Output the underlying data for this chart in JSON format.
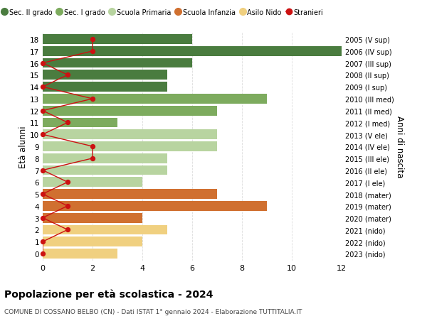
{
  "ages": [
    18,
    17,
    16,
    15,
    14,
    13,
    12,
    11,
    10,
    9,
    8,
    7,
    6,
    5,
    4,
    3,
    2,
    1,
    0
  ],
  "right_labels": [
    "2005 (V sup)",
    "2006 (IV sup)",
    "2007 (III sup)",
    "2008 (II sup)",
    "2009 (I sup)",
    "2010 (III med)",
    "2011 (II med)",
    "2012 (I med)",
    "2013 (V ele)",
    "2014 (IV ele)",
    "2015 (III ele)",
    "2016 (II ele)",
    "2017 (I ele)",
    "2018 (mater)",
    "2019 (mater)",
    "2020 (mater)",
    "2021 (nido)",
    "2022 (nido)",
    "2023 (nido)"
  ],
  "bar_values": [
    6,
    12,
    6,
    5,
    5,
    9,
    7,
    3,
    7,
    7,
    5,
    5,
    4,
    7,
    9,
    4,
    5,
    4,
    3
  ],
  "bar_colors": [
    "#4a7c3f",
    "#4a7c3f",
    "#4a7c3f",
    "#4a7c3f",
    "#4a7c3f",
    "#7dab5e",
    "#7dab5e",
    "#7dab5e",
    "#b8d4a0",
    "#b8d4a0",
    "#b8d4a0",
    "#b8d4a0",
    "#b8d4a0",
    "#d07030",
    "#d07030",
    "#d07030",
    "#f0d080",
    "#f0d080",
    "#f0d080"
  ],
  "stranieri_values": [
    2,
    2,
    0,
    1,
    0,
    2,
    0,
    1,
    0,
    2,
    2,
    0,
    1,
    0,
    1,
    0,
    1,
    0,
    0
  ],
  "legend_labels": [
    "Sec. II grado",
    "Sec. I grado",
    "Scuola Primaria",
    "Scuola Infanzia",
    "Asilo Nido",
    "Stranieri"
  ],
  "legend_colors": [
    "#4a7c3f",
    "#7dab5e",
    "#b8d4a0",
    "#d07030",
    "#f0d080",
    "#cc1111"
  ],
  "ylabel_left": "Età alunni",
  "ylabel_right": "Anni di nascita",
  "title": "Popolazione per età scolastica - 2024",
  "subtitle": "COMUNE DI COSSANO BELBO (CN) - Dati ISTAT 1° gennaio 2024 - Elaborazione TUTTITALIA.IT",
  "xlim": [
    0,
    12
  ],
  "stranieri_color": "#cc1111",
  "background_color": "#ffffff",
  "grid_color": "#dddddd"
}
